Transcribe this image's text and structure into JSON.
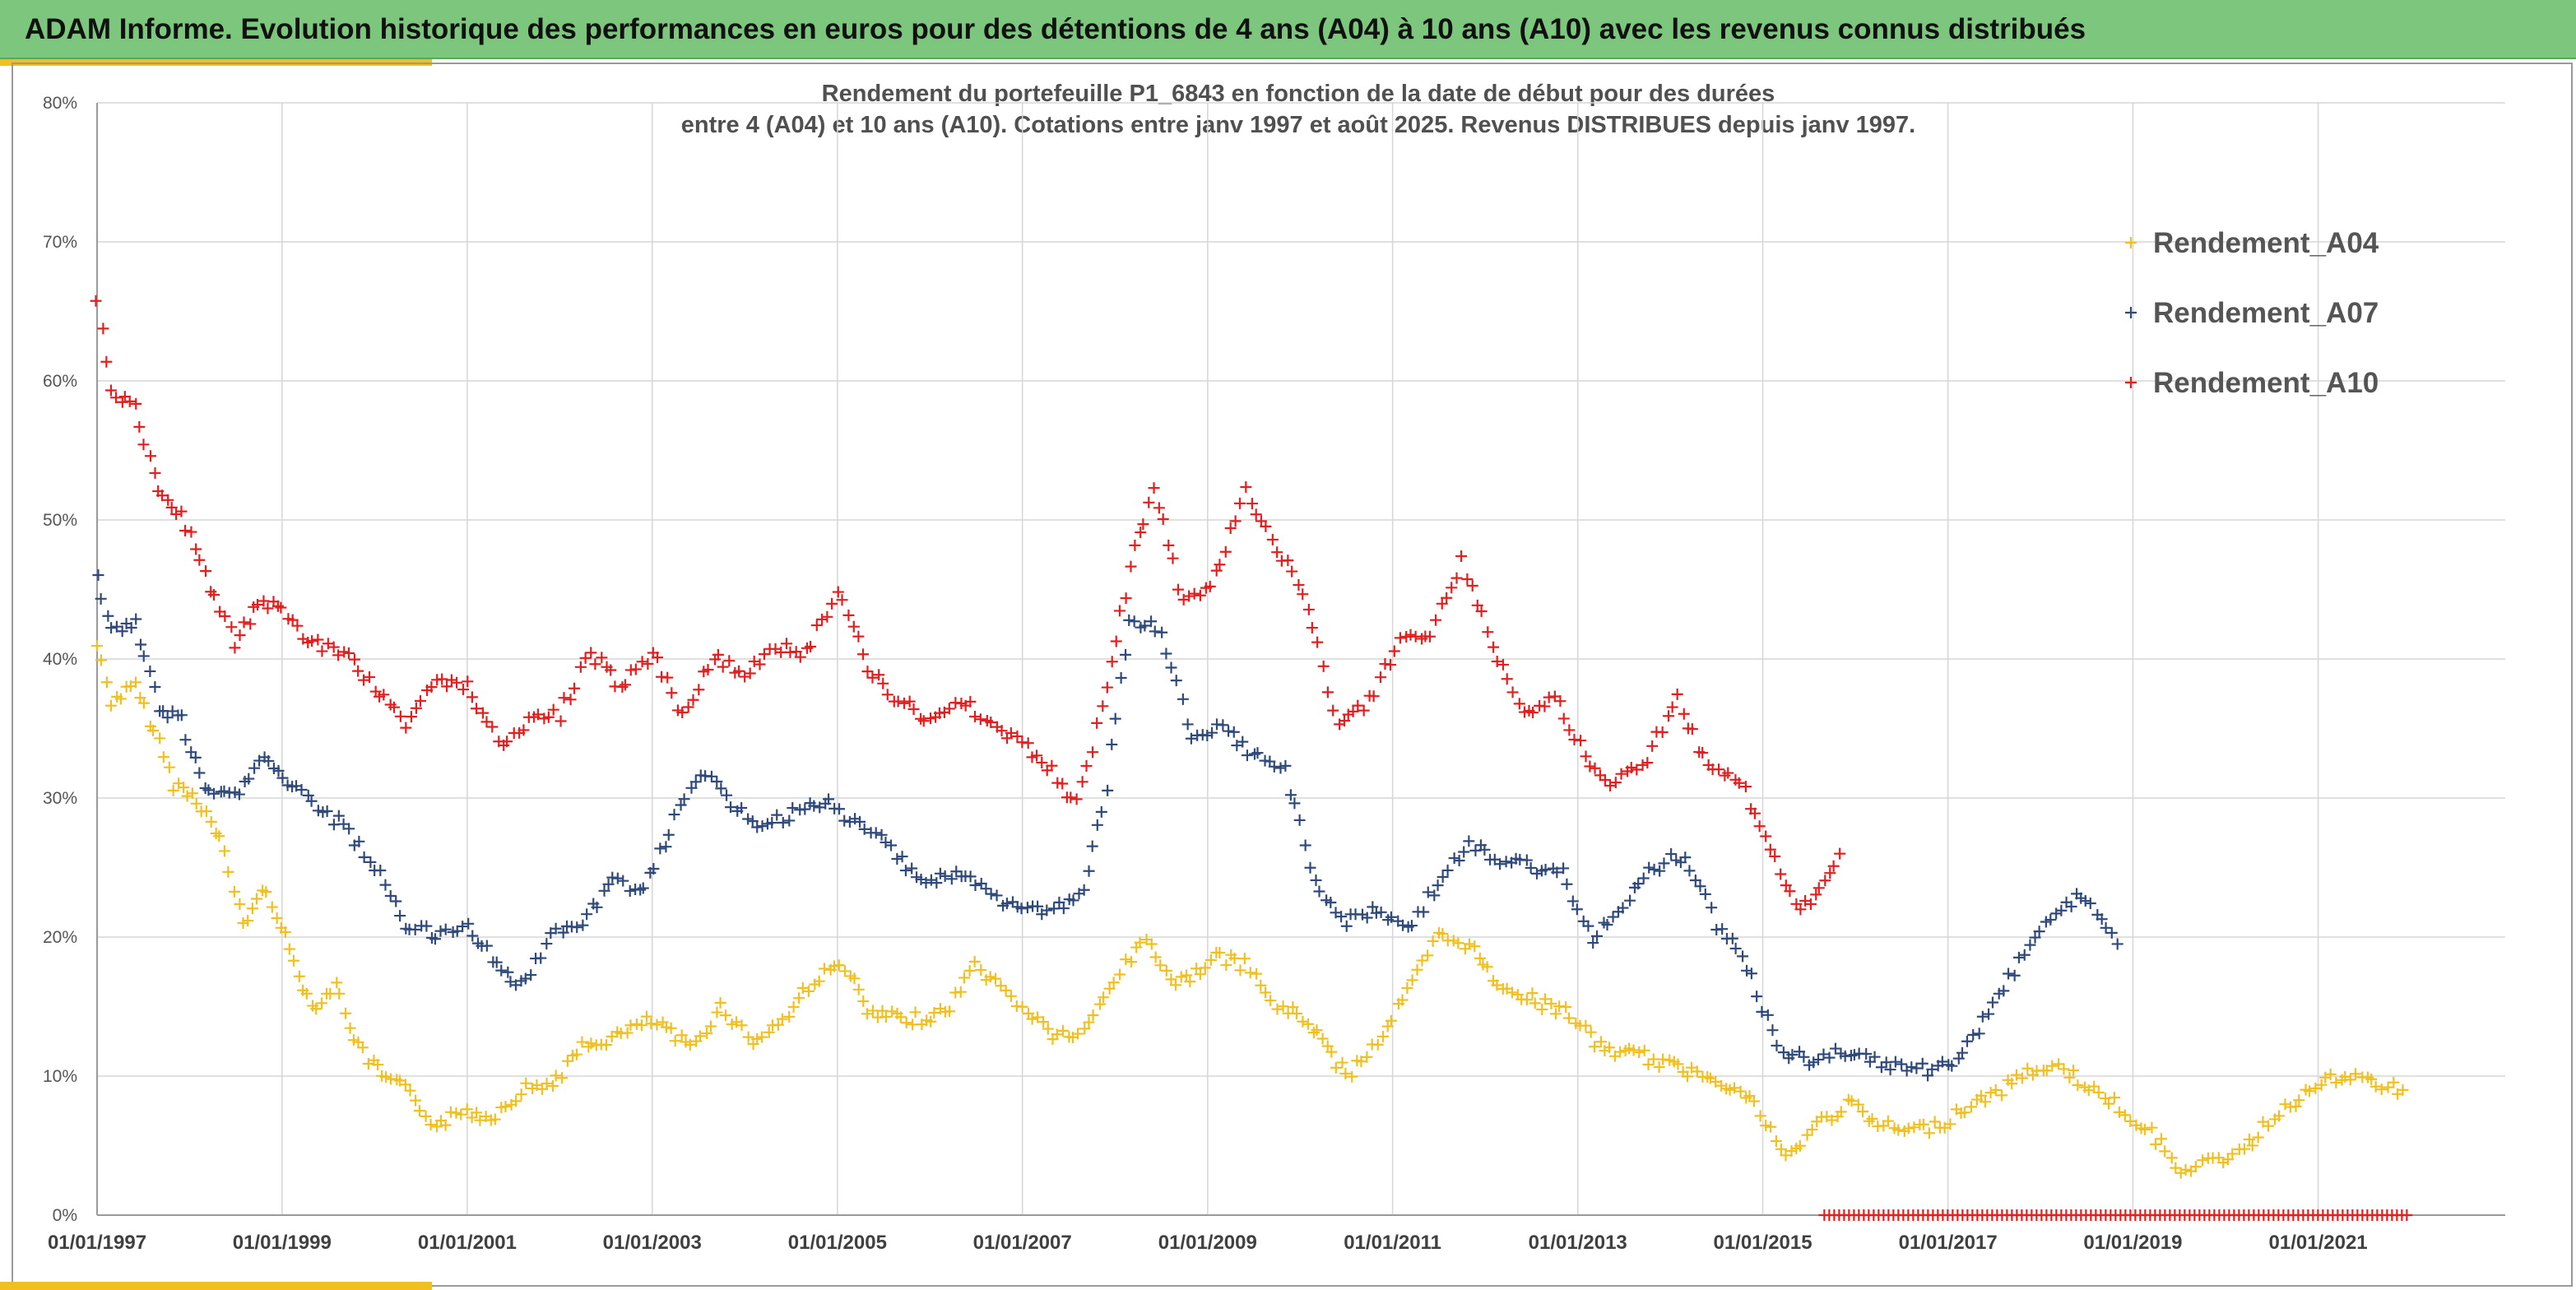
{
  "banner": {
    "title": "ADAM Informe. Evolution historique des performances en euros pour des détentions de 4 ans (A04) à 10 ans (A10) avec les revenus connus distribués"
  },
  "colors": {
    "banner_bg": "#7dc67d",
    "accent": "#f0c020",
    "series_A04": "#f0c020",
    "series_A07": "#2f4a7a",
    "series_A10": "#e02020"
  },
  "chart_data": {
    "type": "scatter",
    "title_lines": [
      "Rendement du portefeuille P1_6843 en fonction de la date de début pour des durées",
      "entre 4 (A04) et 10 ans (A10). Cotations entre janv 1997 et août 2025. Revenus DISTRIBUES depuis janv 1997."
    ],
    "xlabel": "",
    "ylabel": "",
    "x_range": [
      "1997-01-01",
      "2022-01-01"
    ],
    "ylim": [
      0,
      80
    ],
    "y_ticks": [
      "0%",
      "10%",
      "20%",
      "30%",
      "40%",
      "50%",
      "60%",
      "70%",
      "80%"
    ],
    "x_ticks": [
      "01/01/1997",
      "01/01/1999",
      "01/01/2001",
      "01/01/2003",
      "01/01/2005",
      "01/01/2007",
      "01/01/2009",
      "01/01/2011",
      "01/01/2013",
      "01/01/2015",
      "01/01/2017",
      "01/01/2019",
      "01/01/2021"
    ],
    "grid": true,
    "legend_position": "right",
    "series": [
      {
        "name": "Rendement_A04",
        "color": "#f0c020",
        "points": [
          [
            "1997-01-01",
            41
          ],
          [
            "1997-03-01",
            37
          ],
          [
            "1997-06-01",
            38
          ],
          [
            "1997-09-01",
            34
          ],
          [
            "1997-11-01",
            31
          ],
          [
            "1998-02-01",
            30
          ],
          [
            "1998-05-01",
            27
          ],
          [
            "1998-08-01",
            21
          ],
          [
            "1998-11-01",
            23.5
          ],
          [
            "1999-02-01",
            19
          ],
          [
            "1999-05-01",
            15
          ],
          [
            "1999-08-01",
            16.5
          ],
          [
            "1999-11-01",
            12
          ],
          [
            "2000-02-01",
            10
          ],
          [
            "2000-05-01",
            9
          ],
          [
            "2000-09-01",
            6.5
          ],
          [
            "2001-01-01",
            7.5
          ],
          [
            "2001-04-01",
            7
          ],
          [
            "2001-08-01",
            9
          ],
          [
            "2001-12-01",
            9.5
          ],
          [
            "2002-04-01",
            12
          ],
          [
            "2002-09-01",
            13
          ],
          [
            "2003-01-01",
            14
          ],
          [
            "2003-06-01",
            12
          ],
          [
            "2003-10-01",
            15
          ],
          [
            "2004-02-01",
            12.5
          ],
          [
            "2004-06-01",
            14
          ],
          [
            "2004-10-01",
            17
          ],
          [
            "2005-02-01",
            18
          ],
          [
            "2005-05-01",
            14.5
          ],
          [
            "2005-10-01",
            14
          ],
          [
            "2006-03-01",
            14.5
          ],
          [
            "2006-07-01",
            18
          ],
          [
            "2007-01-01",
            15
          ],
          [
            "2007-05-01",
            13
          ],
          [
            "2007-09-01",
            13
          ],
          [
            "2008-01-01",
            17
          ],
          [
            "2008-05-01",
            20
          ],
          [
            "2008-09-01",
            16.5
          ],
          [
            "2009-02-01",
            18.5
          ],
          [
            "2009-06-01",
            18
          ],
          [
            "2009-10-01",
            15
          ],
          [
            "2010-02-01",
            14
          ],
          [
            "2010-07-01",
            10
          ],
          [
            "2010-11-01",
            12.5
          ],
          [
            "2011-03-01",
            16
          ],
          [
            "2011-07-01",
            20
          ],
          [
            "2011-11-01",
            19.5
          ],
          [
            "2012-02-01",
            17
          ],
          [
            "2012-07-01",
            15.5
          ],
          [
            "2012-12-01",
            14.5
          ],
          [
            "2013-04-01",
            12
          ],
          [
            "2013-09-01",
            11.5
          ],
          [
            "2014-02-01",
            10.5
          ],
          [
            "2014-07-01",
            10
          ],
          [
            "2014-12-01",
            8
          ],
          [
            "2015-04-01",
            4
          ],
          [
            "2015-08-01",
            6.5
          ],
          [
            "2015-12-01",
            8
          ],
          [
            "2016-04-01",
            6.5
          ],
          [
            "2016-08-01",
            6
          ],
          [
            "2016-12-01",
            6.5
          ],
          [
            "2017-04-01",
            8
          ],
          [
            "2017-08-01",
            9
          ],
          [
            "2017-12-01",
            10.5
          ],
          [
            "2018-04-01",
            10.5
          ],
          [
            "2018-08-01",
            9
          ],
          [
            "2018-12-01",
            7.5
          ],
          [
            "2019-04-01",
            5.5
          ],
          [
            "2019-08-01",
            3
          ],
          [
            "2019-12-01",
            4
          ],
          [
            "2020-04-01",
            5
          ],
          [
            "2020-08-01",
            7.5
          ],
          [
            "2020-12-01",
            9
          ],
          [
            "2021-04-01",
            10
          ],
          [
            "2021-08-01",
            9.5
          ],
          [
            "2021-12-01",
            9
          ]
        ]
      },
      {
        "name": "Rendement_A07",
        "color": "#2f4a7a",
        "points": [
          [
            "1997-01-01",
            46
          ],
          [
            "1997-03-01",
            42
          ],
          [
            "1997-06-01",
            42.5
          ],
          [
            "1997-09-01",
            36.5
          ],
          [
            "1997-12-01",
            35.5
          ],
          [
            "1998-03-01",
            30.5
          ],
          [
            "1998-07-01",
            30
          ],
          [
            "1998-10-01",
            33
          ],
          [
            "1999-01-01",
            31.5
          ],
          [
            "1999-05-01",
            29.5
          ],
          [
            "1999-09-01",
            28
          ],
          [
            "2000-01-01",
            25
          ],
          [
            "2000-05-01",
            21
          ],
          [
            "2000-09-01",
            20
          ],
          [
            "2001-01-01",
            21
          ],
          [
            "2001-05-01",
            18
          ],
          [
            "2001-08-01",
            16.5
          ],
          [
            "2001-12-01",
            20
          ],
          [
            "2002-04-01",
            21
          ],
          [
            "2002-08-01",
            24
          ],
          [
            "2002-12-01",
            23.5
          ],
          [
            "2003-04-01",
            28.5
          ],
          [
            "2003-08-01",
            32
          ],
          [
            "2003-12-01",
            29
          ],
          [
            "2004-04-01",
            28
          ],
          [
            "2004-08-01",
            29
          ],
          [
            "2004-12-01",
            29.5
          ],
          [
            "2005-04-01",
            28
          ],
          [
            "2005-08-01",
            26.5
          ],
          [
            "2005-12-01",
            24
          ],
          [
            "2006-05-01",
            24.5
          ],
          [
            "2006-09-01",
            23
          ],
          [
            "2007-01-01",
            22
          ],
          [
            "2007-05-01",
            22
          ],
          [
            "2007-09-01",
            23
          ],
          [
            "2007-12-01",
            31
          ],
          [
            "2008-03-01",
            43
          ],
          [
            "2008-07-01",
            42
          ],
          [
            "2008-11-01",
            34
          ],
          [
            "2009-03-01",
            35
          ],
          [
            "2009-07-01",
            33
          ],
          [
            "2009-11-01",
            32
          ],
          [
            "2010-03-01",
            24
          ],
          [
            "2010-07-01",
            21
          ],
          [
            "2010-11-01",
            22
          ],
          [
            "2011-03-01",
            20.5
          ],
          [
            "2011-07-01",
            24
          ],
          [
            "2011-11-01",
            26.5
          ],
          [
            "2012-03-01",
            25.5
          ],
          [
            "2012-07-01",
            25
          ],
          [
            "2012-11-01",
            24.5
          ],
          [
            "2013-03-01",
            20
          ],
          [
            "2013-07-01",
            22.5
          ],
          [
            "2013-11-01",
            25
          ],
          [
            "2014-03-01",
            26
          ],
          [
            "2014-07-01",
            21
          ],
          [
            "2014-11-01",
            18
          ],
          [
            "2015-03-01",
            12
          ],
          [
            "2015-07-01",
            11
          ],
          [
            "2015-11-01",
            12
          ],
          [
            "2016-03-01",
            11
          ],
          [
            "2016-07-01",
            10.5
          ],
          [
            "2016-11-01",
            10.5
          ],
          [
            "2017-03-01",
            11.5
          ],
          [
            "2017-07-01",
            15
          ],
          [
            "2017-11-01",
            19
          ],
          [
            "2018-03-01",
            22
          ],
          [
            "2018-07-01",
            23
          ],
          [
            "2018-11-01",
            19.5
          ]
        ]
      },
      {
        "name": "Rendement_A10",
        "color": "#e02020",
        "points": [
          [
            "1997-01-01",
            66
          ],
          [
            "1997-03-01",
            59
          ],
          [
            "1997-06-01",
            58
          ],
          [
            "1997-09-01",
            52
          ],
          [
            "1997-12-01",
            50.5
          ],
          [
            "1998-03-01",
            46
          ],
          [
            "1998-07-01",
            41
          ],
          [
            "1998-10-01",
            44
          ],
          [
            "1999-01-01",
            43.5
          ],
          [
            "1999-05-01",
            41
          ],
          [
            "1999-09-01",
            40.5
          ],
          [
            "2000-01-01",
            38
          ],
          [
            "2000-05-01",
            35.5
          ],
          [
            "2000-09-01",
            38.5
          ],
          [
            "2001-01-01",
            38
          ],
          [
            "2001-05-01",
            34
          ],
          [
            "2001-09-01",
            35.5
          ],
          [
            "2002-01-01",
            36
          ],
          [
            "2002-05-01",
            40.5
          ],
          [
            "2002-09-01",
            38
          ],
          [
            "2003-01-01",
            40.5
          ],
          [
            "2003-05-01",
            36
          ],
          [
            "2003-09-01",
            40
          ],
          [
            "2004-01-01",
            39
          ],
          [
            "2004-05-01",
            41
          ],
          [
            "2004-09-01",
            40.5
          ],
          [
            "2005-01-01",
            45
          ],
          [
            "2005-05-01",
            39.5
          ],
          [
            "2005-09-01",
            37
          ],
          [
            "2006-01-01",
            35.5
          ],
          [
            "2006-05-01",
            37
          ],
          [
            "2006-09-01",
            35.5
          ],
          [
            "2007-01-01",
            34
          ],
          [
            "2007-05-01",
            32
          ],
          [
            "2007-08-01",
            29.5
          ],
          [
            "2007-12-01",
            38
          ],
          [
            "2008-03-01",
            46.5
          ],
          [
            "2008-06-01",
            52.5
          ],
          [
            "2008-10-01",
            44
          ],
          [
            "2009-02-01",
            46
          ],
          [
            "2009-06-01",
            52
          ],
          [
            "2009-10-01",
            48
          ],
          [
            "2010-02-01",
            44
          ],
          [
            "2010-06-01",
            35
          ],
          [
            "2010-10-01",
            37
          ],
          [
            "2011-02-01",
            41.5
          ],
          [
            "2011-06-01",
            42
          ],
          [
            "2011-10-01",
            47
          ],
          [
            "2012-02-01",
            41
          ],
          [
            "2012-06-01",
            36
          ],
          [
            "2012-10-01",
            37.5
          ],
          [
            "2013-02-01",
            33
          ],
          [
            "2013-06-01",
            31
          ],
          [
            "2013-10-01",
            33
          ],
          [
            "2014-02-01",
            37
          ],
          [
            "2014-06-01",
            32
          ],
          [
            "2014-10-01",
            31.5
          ],
          [
            "2015-02-01",
            26
          ],
          [
            "2015-06-01",
            22
          ],
          [
            "2015-09-01",
            24
          ],
          [
            "2015-11-01",
            26
          ]
        ]
      }
    ],
    "baseline_series": {
      "name": "Rendement_A10",
      "color": "#e02020",
      "from": "2015-09-01",
      "to": "2021-12-31",
      "value": 0
    }
  }
}
